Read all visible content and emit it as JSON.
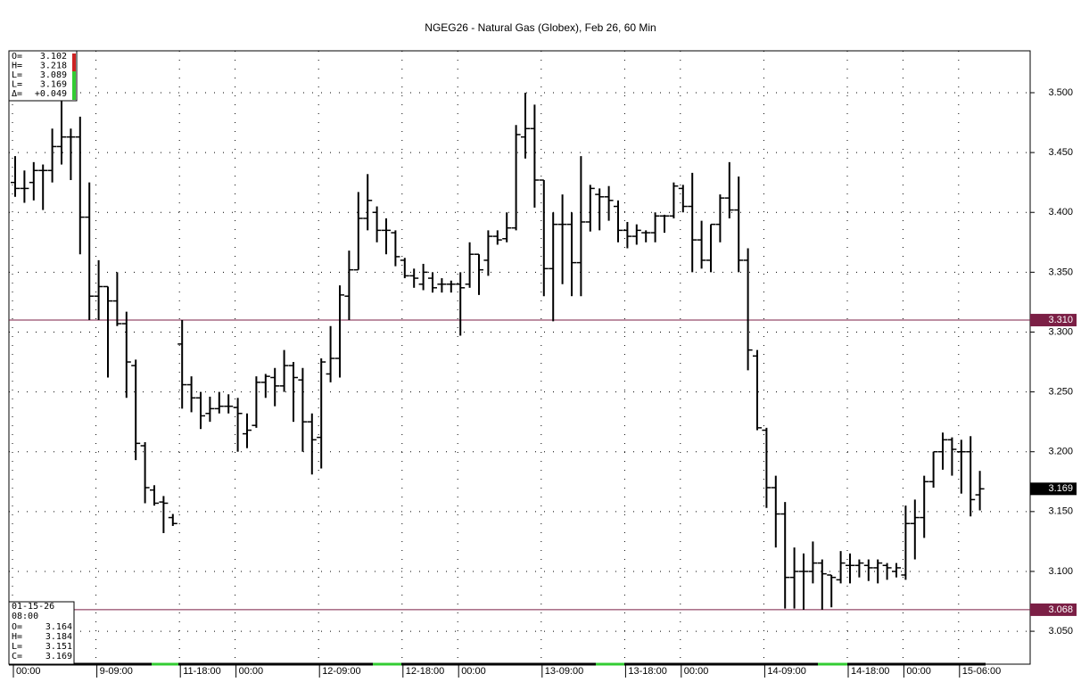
{
  "chart_data": {
    "type": "ohlc",
    "title": "NGEG26 - Natural Gas (Globex), Feb 26, 60 Min",
    "categories": [
      "00:00",
      null,
      null,
      null,
      null,
      null,
      null,
      null,
      null,
      "9-09:00",
      null,
      null,
      null,
      null,
      null,
      null,
      null,
      null,
      "11-18:00",
      null,
      null,
      null,
      null,
      null,
      "00:00",
      null,
      null,
      null,
      null,
      null,
      null,
      null,
      null,
      "12-09:00",
      null,
      null,
      null,
      null,
      null,
      null,
      null,
      null,
      "12-18:00",
      null,
      null,
      null,
      null,
      null,
      "00:00",
      null,
      null,
      null,
      null,
      null,
      null,
      null,
      null,
      "13-09:00",
      null,
      null,
      null,
      null,
      null,
      null,
      null,
      null,
      "13-18:00",
      null,
      null,
      null,
      null,
      null,
      "00:00",
      null,
      null,
      null,
      null,
      null,
      null,
      null,
      null,
      "14-09:00",
      null,
      null,
      null,
      null,
      null,
      null,
      null,
      null,
      "14-18:00",
      null,
      null,
      null,
      null,
      null,
      "00:00",
      null,
      null,
      null,
      null,
      null,
      "15-06:00",
      null,
      null
    ],
    "open": [
      3.425,
      3.42,
      3.425,
      3.435,
      3.435,
      3.455,
      3.463,
      3.463,
      3.396,
      3.33,
      3.338,
      3.326,
      3.307,
      3.272,
      3.205,
      3.168,
      3.158,
      3.145,
      3.29,
      3.256,
      3.245,
      3.232,
      3.236,
      3.238,
      3.237,
      3.215,
      3.222,
      3.258,
      3.262,
      3.255,
      3.272,
      3.26,
      3.225,
      3.212,
      3.265,
      3.278,
      3.33,
      3.352,
      3.395,
      3.4,
      3.385,
      3.383,
      3.36,
      3.347,
      3.34,
      3.345,
      3.34,
      3.34,
      3.34,
      3.34,
      3.365,
      3.36,
      3.38,
      3.378,
      3.387,
      3.463,
      3.47,
      3.427,
      3.353,
      3.39,
      3.39,
      3.358,
      3.392,
      3.415,
      3.413,
      3.405,
      3.385,
      3.38,
      3.383,
      3.383,
      3.397,
      3.397,
      3.42,
      3.405,
      3.377,
      3.36,
      3.39,
      3.412,
      3.402,
      3.36,
      3.28,
      3.218,
      3.17,
      3.148,
      3.095,
      3.1,
      3.1,
      3.107,
      3.097,
      3.093,
      3.105,
      3.105,
      3.105,
      3.103,
      3.105,
      3.1,
      3.097,
      3.14,
      3.145,
      3.175,
      3.2,
      3.21,
      3.2,
      3.2,
      3.164
    ],
    "high": [
      3.447,
      3.435,
      3.442,
      3.44,
      3.47,
      3.493,
      3.47,
      3.48,
      3.425,
      3.36,
      3.338,
      3.35,
      3.317,
      3.277,
      3.208,
      3.172,
      3.163,
      3.148,
      3.31,
      3.263,
      3.25,
      3.246,
      3.25,
      3.248,
      3.245,
      3.232,
      3.263,
      3.265,
      3.27,
      3.285,
      3.275,
      3.27,
      3.232,
      3.278,
      3.305,
      3.339,
      3.368,
      3.417,
      3.432,
      3.405,
      3.395,
      3.385,
      3.362,
      3.353,
      3.357,
      3.35,
      3.345,
      3.343,
      3.35,
      3.375,
      3.365,
      3.385,
      3.385,
      3.4,
      3.473,
      3.5,
      3.49,
      3.427,
      3.4,
      3.415,
      3.4,
      3.447,
      3.423,
      3.42,
      3.422,
      3.41,
      3.392,
      3.39,
      3.385,
      3.4,
      3.398,
      3.425,
      3.423,
      3.433,
      3.393,
      3.39,
      3.415,
      3.442,
      3.43,
      3.37,
      3.285,
      3.22,
      3.18,
      3.158,
      3.12,
      3.115,
      3.125,
      3.11,
      3.097,
      3.117,
      3.115,
      3.11,
      3.11,
      3.11,
      3.107,
      3.107,
      3.155,
      3.16,
      3.18,
      3.2,
      3.216,
      3.212,
      3.21,
      3.213,
      3.184
    ],
    "low": [
      3.413,
      3.408,
      3.41,
      3.402,
      3.425,
      3.44,
      3.427,
      3.365,
      3.31,
      3.31,
      3.262,
      3.305,
      3.245,
      3.193,
      3.157,
      3.155,
      3.132,
      3.138,
      3.236,
      3.233,
      3.219,
      3.225,
      3.232,
      3.232,
      3.2,
      3.203,
      3.22,
      3.245,
      3.238,
      3.25,
      3.225,
      3.2,
      3.181,
      3.186,
      3.258,
      3.262,
      3.31,
      3.352,
      3.385,
      3.375,
      3.365,
      3.355,
      3.345,
      3.337,
      3.335,
      3.333,
      3.333,
      3.333,
      3.297,
      3.337,
      3.331,
      3.347,
      3.373,
      3.375,
      3.385,
      3.445,
      3.404,
      3.33,
      3.309,
      3.34,
      3.33,
      3.33,
      3.384,
      3.385,
      3.393,
      3.375,
      3.37,
      3.373,
      3.375,
      3.375,
      3.383,
      3.395,
      3.4,
      3.35,
      3.353,
      3.35,
      3.375,
      3.395,
      3.35,
      3.268,
      3.218,
      3.153,
      3.12,
      3.069,
      3.069,
      3.068,
      3.09,
      3.068,
      3.07,
      3.09,
      3.09,
      3.095,
      3.092,
      3.09,
      3.093,
      3.095,
      3.093,
      3.11,
      3.128,
      3.17,
      3.185,
      3.18,
      3.165,
      3.146,
      3.151
    ],
    "close": [
      3.42,
      3.42,
      3.435,
      3.435,
      3.455,
      3.463,
      3.463,
      3.396,
      3.33,
      3.338,
      3.326,
      3.307,
      3.275,
      3.207,
      3.17,
      3.157,
      3.157,
      3.14,
      3.256,
      3.245,
      3.23,
      3.236,
      3.238,
      3.238,
      3.232,
      3.218,
      3.258,
      3.263,
      3.255,
      3.272,
      3.262,
      3.225,
      3.21,
      3.275,
      3.278,
      3.331,
      3.352,
      3.395,
      3.41,
      3.385,
      3.385,
      3.363,
      3.347,
      3.345,
      3.35,
      3.337,
      3.34,
      3.34,
      3.337,
      3.365,
      3.352,
      3.38,
      3.377,
      3.387,
      3.465,
      3.47,
      3.427,
      3.353,
      3.39,
      3.39,
      3.358,
      3.392,
      3.42,
      3.413,
      3.41,
      3.385,
      3.38,
      3.385,
      3.383,
      3.397,
      3.397,
      3.422,
      3.405,
      3.377,
      3.36,
      3.39,
      3.412,
      3.402,
      3.36,
      3.285,
      3.22,
      3.17,
      3.148,
      3.095,
      3.1,
      3.1,
      3.107,
      3.098,
      3.095,
      3.107,
      3.105,
      3.107,
      3.103,
      3.107,
      3.103,
      3.103,
      3.14,
      3.145,
      3.175,
      3.2,
      3.21,
      3.202,
      3.2,
      3.16,
      3.169
    ],
    "color": "#000000",
    "ylim": [
      3.0225,
      3.535
    ],
    "yticks": [
      {
        "value": 3.05,
        "label": "3.050"
      },
      {
        "value": 3.1,
        "label": "3.100"
      },
      {
        "value": 3.15,
        "label": "3.150"
      },
      {
        "value": 3.2,
        "label": "3.200"
      },
      {
        "value": 3.25,
        "label": "3.250"
      },
      {
        "value": 3.3,
        "label": "3.300"
      },
      {
        "value": 3.35,
        "label": "3.350"
      },
      {
        "value": 3.4,
        "label": "3.400"
      },
      {
        "value": 3.45,
        "label": "3.450"
      },
      {
        "value": 3.5,
        "label": "3.500"
      }
    ],
    "grid": true,
    "hlines": [
      {
        "value": 3.31,
        "label": "3.310",
        "color": "#7b1f45"
      },
      {
        "value": 3.068,
        "label": "3.068",
        "color": "#7b1f45"
      }
    ],
    "last_price": {
      "value": 3.169,
      "label": "3.169",
      "color": "#000000"
    }
  },
  "data_window": [
    {
      "label": "O=",
      "value": "3.102"
    },
    {
      "label": "H=",
      "value": "3.218"
    },
    {
      "label": "L=",
      "value": "3.089"
    },
    {
      "label": "L=",
      "value": "3.169"
    },
    {
      "label": "Δ=",
      "value": "+0.049"
    }
  ],
  "cursor_info": {
    "date": "01-15-26",
    "time": "08:00",
    "fields": [
      {
        "label": "O=",
        "value": "3.164"
      },
      {
        "label": "H=",
        "value": "3.184"
      },
      {
        "label": "L=",
        "value": "3.151"
      },
      {
        "label": "C=",
        "value": "3.169"
      }
    ]
  }
}
